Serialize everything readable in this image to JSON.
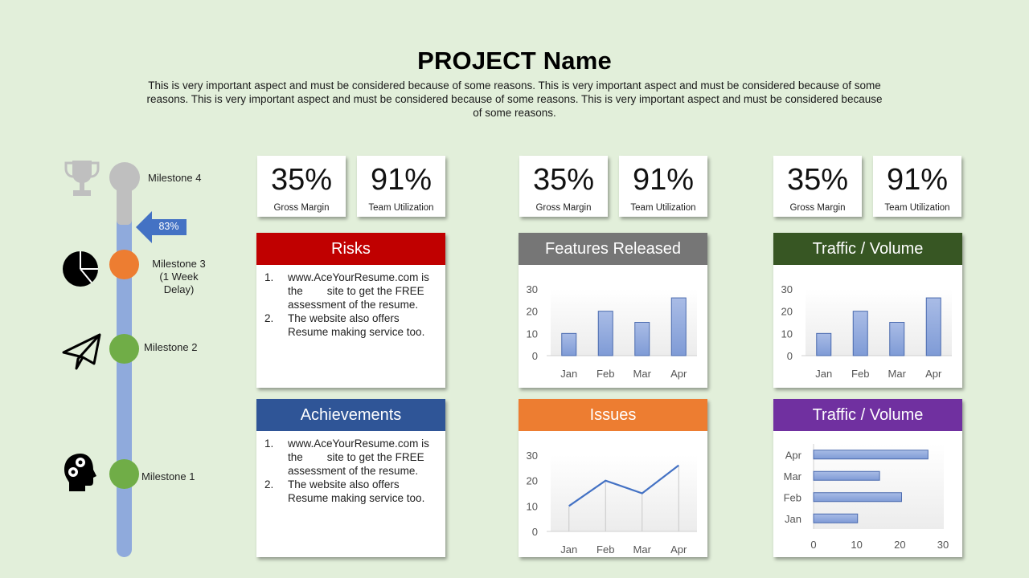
{
  "header": {
    "title": "PROJECT Name",
    "subtitle": "This is very important aspect and must be considered because of some reasons. This is very important aspect and must be considered because of some reasons. This is very important aspect and must be considered because of some reasons. This is very important aspect and must be considered because of some reasons."
  },
  "timeline": {
    "progress_label": "83%",
    "milestones": [
      {
        "label": "Milestone 4",
        "icon": "trophy-icon",
        "color": "#BFBFBF"
      },
      {
        "label": "Milestone 3\n(1 Week\nDelay)",
        "line1": "Milestone 3",
        "line2": "(1 Week",
        "line3": "Delay)",
        "icon": "pie-chart-icon",
        "color": "#ED7D31"
      },
      {
        "label": "Milestone 2",
        "icon": "paper-plane-icon",
        "color": "#70AD47"
      },
      {
        "label": "Milestone 1",
        "icon": "head-gears-icon",
        "color": "#70AD47"
      }
    ],
    "colors": {
      "done": "#8FAADC",
      "todo": "#BFBFBF",
      "arrow": "#4472C4"
    }
  },
  "kpis": [
    {
      "value": "35%",
      "label": "Gross Margin"
    },
    {
      "value": "91%",
      "label": "Team Utilization"
    },
    {
      "value": "35%",
      "label": "Gross Margin"
    },
    {
      "value": "91%",
      "label": "Team Utilization"
    },
    {
      "value": "35%",
      "label": "Gross Margin"
    },
    {
      "value": "91%",
      "label": "Team Utilization"
    }
  ],
  "risks": {
    "title": "Risks",
    "color": "#C00000",
    "items": [
      {
        "num": "1.",
        "text": "www.AceYourResume.com is the        site to get the FREE assessment of the resume."
      },
      {
        "num": "2.",
        "text": "The website also offers Resume making service too."
      }
    ]
  },
  "achievements": {
    "title": "Achievements",
    "color": "#2F5597",
    "items": [
      {
        "num": "1.",
        "text": "www.AceYourResume.com is the        site to get the FREE assessment of the resume."
      },
      {
        "num": "2.",
        "text": "The website also offers Resume making service too."
      }
    ]
  },
  "panels": {
    "features": {
      "title": "Features Released",
      "color": "#767676"
    },
    "traffic_col": {
      "title": "Traffic / Volume",
      "color": "#375623"
    },
    "issues": {
      "title": "Issues",
      "color": "#ED7D31"
    },
    "traffic_bar": {
      "title": "Traffic / Volume",
      "color": "#7030A0"
    }
  },
  "chart_data": [
    {
      "type": "bar",
      "title": "Features Released",
      "categories": [
        "Jan",
        "Feb",
        "Mar",
        "Apr"
      ],
      "values": [
        10,
        20,
        15,
        26
      ],
      "xlabel": "",
      "ylabel": "",
      "ylim": [
        0,
        30
      ],
      "yticks": [
        "0",
        "10",
        "20",
        "30"
      ],
      "orientation": "vertical",
      "grid": false,
      "bar_color": "#8FAADC"
    },
    {
      "type": "bar",
      "title": "Traffic / Volume",
      "categories": [
        "Jan",
        "Feb",
        "Mar",
        "Apr"
      ],
      "values": [
        10,
        20,
        15,
        26
      ],
      "xlabel": "",
      "ylabel": "",
      "ylim": [
        0,
        30
      ],
      "yticks": [
        "0",
        "10",
        "20",
        "30"
      ],
      "orientation": "vertical",
      "grid": false,
      "bar_color": "#8FAADC"
    },
    {
      "type": "line",
      "title": "Issues",
      "categories": [
        "Jan",
        "Feb",
        "Mar",
        "Apr"
      ],
      "values": [
        10,
        20,
        15,
        26
      ],
      "xlabel": "",
      "ylabel": "",
      "ylim": [
        0,
        30
      ],
      "yticks": [
        "0",
        "10",
        "20",
        "30"
      ],
      "drop_lines": true,
      "line_color": "#4472C4"
    },
    {
      "type": "bar",
      "title": "Traffic / Volume",
      "categories": [
        "Jan",
        "Feb",
        "Mar",
        "Apr"
      ],
      "values": [
        10,
        20,
        15,
        26
      ],
      "xlabel": "",
      "ylabel": "",
      "xlim": [
        0,
        30
      ],
      "xticks": [
        "0",
        "10",
        "20",
        "30"
      ],
      "orientation": "horizontal",
      "grid": false,
      "bar_color": "#8FAADC"
    }
  ]
}
